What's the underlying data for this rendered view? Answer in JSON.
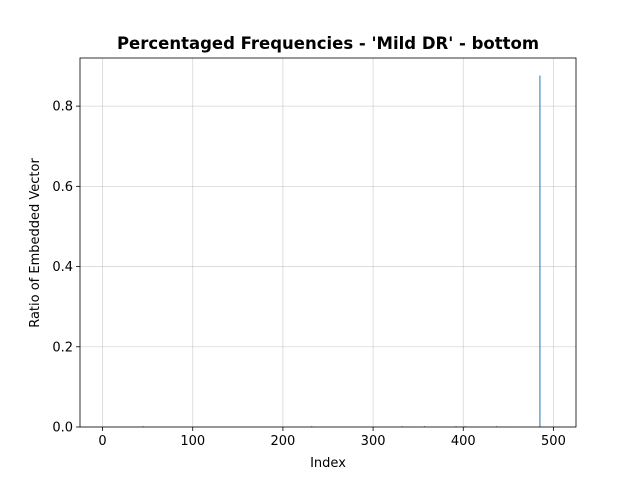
{
  "chart_data": {
    "type": "bar",
    "title": "Percentaged Frequencies - 'Mild DR' - bottom",
    "xlabel": "Index",
    "ylabel": "Ratio of Embedded Vector",
    "xlim": [
      -25,
      525
    ],
    "ylim": [
      0,
      0.92
    ],
    "xticks": [
      0,
      100,
      200,
      300,
      400,
      500
    ],
    "xtick_labels": [
      "0",
      "100",
      "200",
      "300",
      "400",
      "500"
    ],
    "yticks": [
      0.0,
      0.2,
      0.4,
      0.6,
      0.8
    ],
    "ytick_labels": [
      "0.0",
      "0.2",
      "0.4",
      "0.6",
      "0.8"
    ],
    "grid": true,
    "bar_color": "#1f77b4",
    "x": [
      45,
      232,
      332,
      342,
      357,
      372,
      392,
      402,
      412,
      437,
      447,
      485
    ],
    "values": [
      0.002,
      0.002,
      0.002,
      0.001,
      0.002,
      0.001,
      0.002,
      0.002,
      0.001,
      0.002,
      0.001,
      0.876
    ]
  }
}
